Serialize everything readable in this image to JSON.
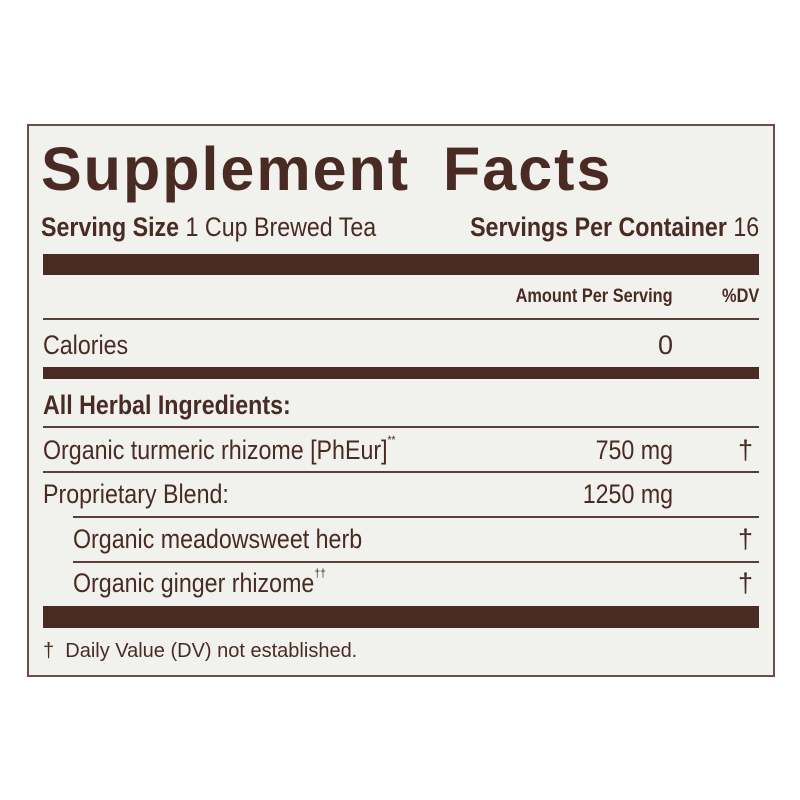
{
  "title": "Supplement Facts",
  "serving_size": {
    "label": "Serving Size",
    "value": "1 Cup Brewed Tea"
  },
  "servings_per_container": {
    "label": "Servings Per Container",
    "value": "16"
  },
  "columns": {
    "amount": "Amount Per Serving",
    "dv": "%DV"
  },
  "calories": {
    "label": "Calories",
    "amount": "0"
  },
  "section_heading": "All Herbal Ingredients:",
  "ingredients": [
    {
      "name": "Organic turmeric rhizome [PhEur]",
      "mark": "**",
      "amount": "750 mg",
      "dv": "†"
    },
    {
      "name": "Proprietary Blend:",
      "mark": "",
      "amount": "1250 mg",
      "dv": ""
    },
    {
      "name": "Organic meadowsweet herb",
      "mark": "",
      "amount": "",
      "dv": "†"
    },
    {
      "name": "Organic ginger rhizome",
      "mark": "††",
      "amount": "",
      "dv": "†"
    }
  ],
  "footnote": {
    "symbol": "†",
    "text": "Daily Value (DV) not established."
  },
  "colors": {
    "ink": "#4a2b24",
    "background": "#f1f1ed"
  }
}
